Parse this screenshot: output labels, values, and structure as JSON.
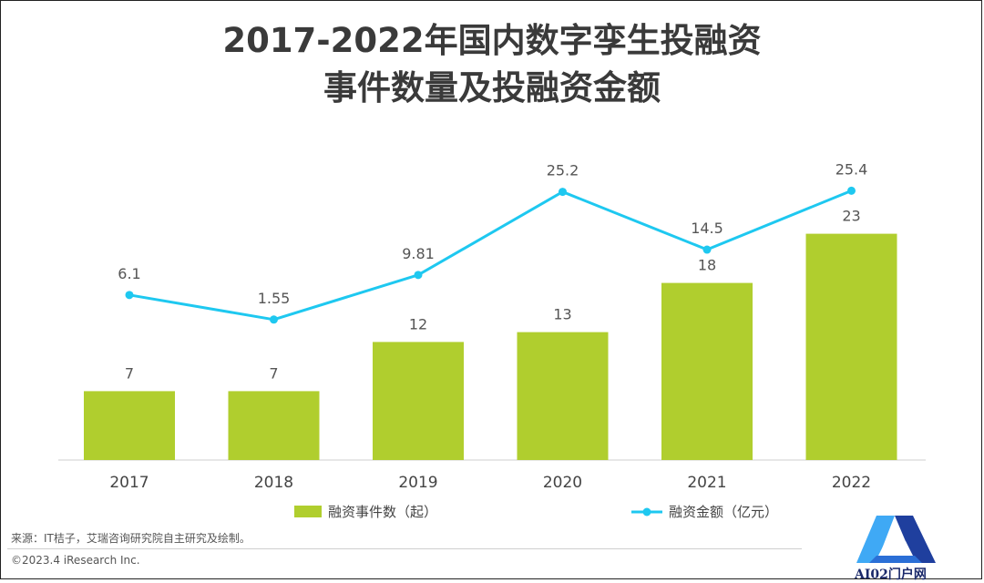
{
  "title": {
    "line1": "2017-2022年国内数字孪生投融资",
    "line2": "事件数量及投融资金额"
  },
  "chart_data": {
    "type": "bar",
    "categories": [
      "2017",
      "2018",
      "2019",
      "2020",
      "2021",
      "2022"
    ],
    "series": [
      {
        "name": "融资事件数（起）",
        "type": "bar",
        "values": [
          7,
          7,
          12,
          13,
          18,
          23
        ],
        "color": "#b0ce2e"
      },
      {
        "name": "融资金额（亿元）",
        "type": "line",
        "values": [
          6.1,
          1.55,
          9.81,
          25.2,
          14.5,
          25.4
        ],
        "color": "#1ec8f0"
      }
    ],
    "value_labels": {
      "bars": [
        "7",
        "7",
        "12",
        "13",
        "18",
        "23"
      ],
      "line": [
        "6.1",
        "1.55",
        "9.81",
        "25.2",
        "14.5",
        "25.4"
      ]
    },
    "legend_position": "bottom",
    "grid": false
  },
  "footer": {
    "source": "来源：IT桔子，艾瑞咨询研究院自主研究及绘制。",
    "copyright": "©2023.4 iResearch Inc."
  },
  "watermark": {
    "text": "AI02门户网",
    "colors": {
      "primary": "#1f3f9e",
      "secondary": "#3fa9f5"
    }
  }
}
